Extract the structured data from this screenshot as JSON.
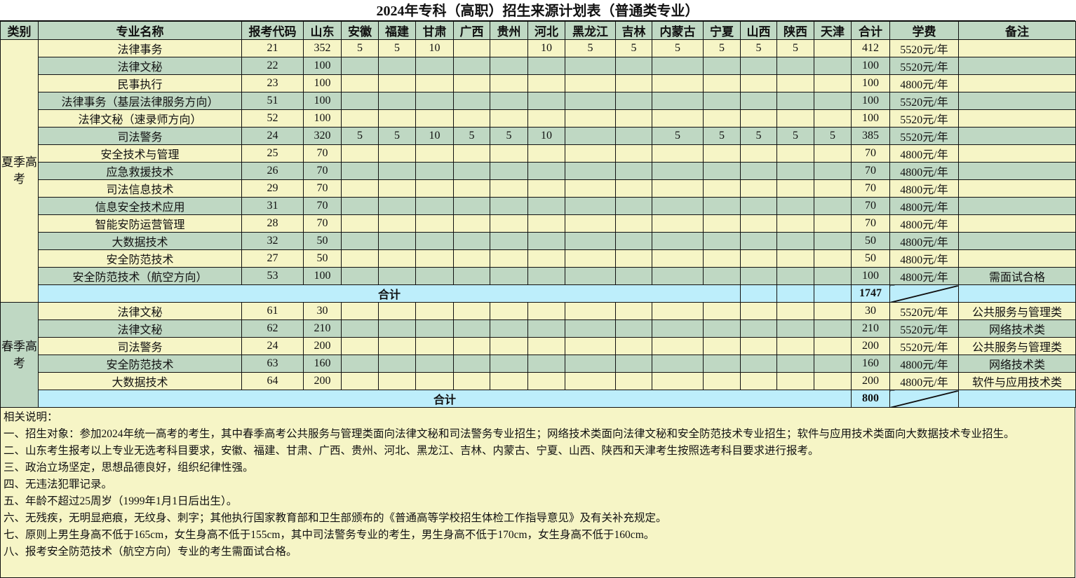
{
  "title": "2024年专科（高职）招生来源计划表（普通类专业）",
  "headers": [
    "类别",
    "专业名称",
    "报考代码",
    "山东",
    "安徽",
    "福建",
    "甘肃",
    "广西",
    "贵州",
    "河北",
    "黑龙江",
    "吉林",
    "内蒙古",
    "宁夏",
    "山西",
    "陕西",
    "天津",
    "合计",
    "学费",
    "备注"
  ],
  "colors": {
    "yellow": "#f6f5c6",
    "green": "#bfd8c3",
    "total": "#bdeefb"
  },
  "summer": {
    "category": "夏季高考",
    "rows": [
      [
        "法律事务",
        "21",
        "352",
        "5",
        "5",
        "10",
        "",
        "",
        "10",
        "5",
        "5",
        "5",
        "5",
        "5",
        "5",
        "",
        "412",
        "5520元/年",
        ""
      ],
      [
        "法律文秘",
        "22",
        "100",
        "",
        "",
        "",
        "",
        "",
        "",
        "",
        "",
        "",
        "",
        "",
        "",
        "",
        "100",
        "5520元/年",
        ""
      ],
      [
        "民事执行",
        "23",
        "100",
        "",
        "",
        "",
        "",
        "",
        "",
        "",
        "",
        "",
        "",
        "",
        "",
        "",
        "100",
        "4800元/年",
        ""
      ],
      [
        "法律事务（基层法律服务方向）",
        "51",
        "100",
        "",
        "",
        "",
        "",
        "",
        "",
        "",
        "",
        "",
        "",
        "",
        "",
        "",
        "100",
        "5520元/年",
        ""
      ],
      [
        "法律文秘（速录师方向）",
        "52",
        "100",
        "",
        "",
        "",
        "",
        "",
        "",
        "",
        "",
        "",
        "",
        "",
        "",
        "",
        "100",
        "5520元/年",
        ""
      ],
      [
        "司法警务",
        "24",
        "320",
        "5",
        "5",
        "10",
        "5",
        "5",
        "10",
        "",
        "",
        "5",
        "5",
        "5",
        "5",
        "5",
        "385",
        "5520元/年",
        ""
      ],
      [
        "安全技术与管理",
        "25",
        "70",
        "",
        "",
        "",
        "",
        "",
        "",
        "",
        "",
        "",
        "",
        "",
        "",
        "",
        "70",
        "4800元/年",
        ""
      ],
      [
        "应急救援技术",
        "26",
        "70",
        "",
        "",
        "",
        "",
        "",
        "",
        "",
        "",
        "",
        "",
        "",
        "",
        "",
        "70",
        "4800元/年",
        ""
      ],
      [
        "司法信息技术",
        "29",
        "70",
        "",
        "",
        "",
        "",
        "",
        "",
        "",
        "",
        "",
        "",
        "",
        "",
        "",
        "70",
        "4800元/年",
        ""
      ],
      [
        "信息安全技术应用",
        "31",
        "70",
        "",
        "",
        "",
        "",
        "",
        "",
        "",
        "",
        "",
        "",
        "",
        "",
        "",
        "70",
        "4800元/年",
        ""
      ],
      [
        "智能安防运营管理",
        "28",
        "70",
        "",
        "",
        "",
        "",
        "",
        "",
        "",
        "",
        "",
        "",
        "",
        "",
        "",
        "70",
        "4800元/年",
        ""
      ],
      [
        "大数据技术",
        "32",
        "50",
        "",
        "",
        "",
        "",
        "",
        "",
        "",
        "",
        "",
        "",
        "",
        "",
        "",
        "50",
        "4800元/年",
        ""
      ],
      [
        "安全防范技术",
        "27",
        "50",
        "",
        "",
        "",
        "",
        "",
        "",
        "",
        "",
        "",
        "",
        "",
        "",
        "",
        "50",
        "4800元/年",
        ""
      ],
      [
        "安全防范技术（航空方向）",
        "53",
        "100",
        "",
        "",
        "",
        "",
        "",
        "",
        "",
        "",
        "",
        "",
        "",
        "",
        "",
        "100",
        "4800元/年",
        "需面试合格"
      ]
    ],
    "total_label": "合计",
    "total": "1747"
  },
  "spring": {
    "category": "春季高考",
    "rows": [
      [
        "法律文秘",
        "61",
        "30",
        "",
        "",
        "",
        "",
        "",
        "",
        "",
        "",
        "",
        "",
        "",
        "",
        "",
        "30",
        "5520元/年",
        "公共服务与管理类"
      ],
      [
        "法律文秘",
        "62",
        "210",
        "",
        "",
        "",
        "",
        "",
        "",
        "",
        "",
        "",
        "",
        "",
        "",
        "",
        "210",
        "5520元/年",
        "网络技术类"
      ],
      [
        "司法警务",
        "24",
        "200",
        "",
        "",
        "",
        "",
        "",
        "",
        "",
        "",
        "",
        "",
        "",
        "",
        "",
        "200",
        "5520元/年",
        "公共服务与管理类"
      ],
      [
        "安全防范技术",
        "63",
        "160",
        "",
        "",
        "",
        "",
        "",
        "",
        "",
        "",
        "",
        "",
        "",
        "",
        "",
        "160",
        "4800元/年",
        "网络技术类"
      ],
      [
        "大数据技术",
        "64",
        "200",
        "",
        "",
        "",
        "",
        "",
        "",
        "",
        "",
        "",
        "",
        "",
        "",
        "",
        "200",
        "4800元/年",
        "软件与应用技术类"
      ]
    ],
    "total_label": "合计",
    "total": "800"
  },
  "notes": {
    "heading": "相关说明：",
    "items": [
      "一、招生对象：参加2024年统一高考的考生，其中春季高考公共服务与管理类面向法律文秘和司法警务专业招生；网络技术类面向法律文秘和安全防范技术专业招生；软件与应用技术类面向大数据技术专业招生。",
      "二、山东考生报考以上专业无选考科目要求，安徽、福建、甘肃、广西、贵州、河北、黑龙江、吉林、内蒙古、宁夏、山西、陕西和天津考生按照选考科目要求进行报考。",
      "三、政治立场坚定，思想品德良好，组织纪律性强。",
      "四、无违法犯罪记录。",
      "五、年龄不超过25周岁（1999年1月1日后出生）。",
      "六、无残疾，无明显疤痕，无纹身、刺字；其他执行国家教育部和卫生部颁布的《普通高等学校招生体检工作指导意见》及有关补充规定。",
      "七、原则上男生身高不低于165cm，女生身高不低于155cm，其中司法警务专业的考生，男生身高不低于170cm，女生身高不低于160cm。",
      "八、报考安全防范技术（航空方向）专业的考生需面试合格。"
    ]
  }
}
